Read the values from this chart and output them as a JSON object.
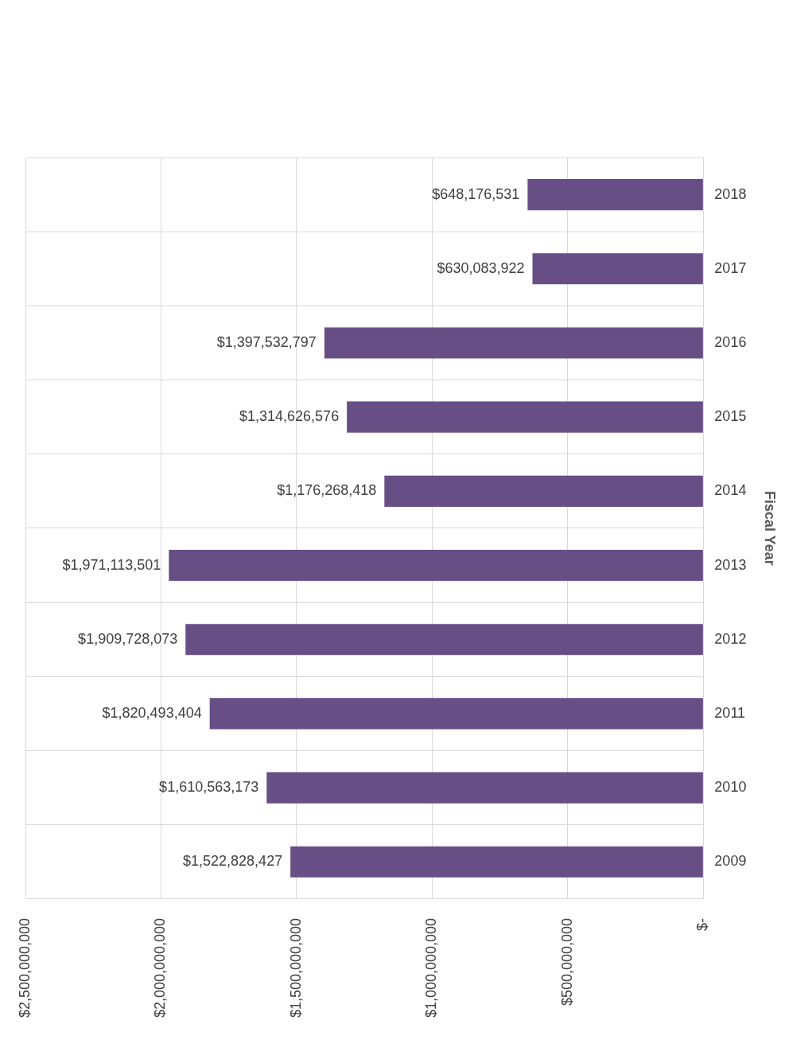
{
  "chart_data": {
    "type": "bar",
    "orientation": "horizontal",
    "ylabel": "Fiscal Year",
    "categories": [
      "2018",
      "2017",
      "2016",
      "2015",
      "2014",
      "2013",
      "2012",
      "2011",
      "2010",
      "2009"
    ],
    "values": [
      648176531,
      630083922,
      1397532797,
      1314626576,
      1176268418,
      1971113501,
      1909728073,
      1820493404,
      1610563173,
      1522828427
    ],
    "value_labels": [
      "$648,176,531",
      "$630,083,922",
      "$1,397,532,797",
      "$1,314,626,576",
      "$1,176,268,418",
      "$1,971,113,501",
      "$1,909,728,073",
      "$1,820,493,404",
      "$1,610,563,173",
      "$1,522,828,427"
    ],
    "color": "#674f86",
    "xlim": [
      2500000000,
      0
    ],
    "xticks": [
      {
        "value": 2500000000,
        "label": "$2,500,000,000"
      },
      {
        "value": 2000000000,
        "label": "$2,000,000,000"
      },
      {
        "value": 1500000000,
        "label": "$1,500,000,000"
      },
      {
        "value": 1000000000,
        "label": "$1,000,000,000"
      },
      {
        "value": 500000000,
        "label": "$500,000,000"
      },
      {
        "value": 0,
        "label": "$-"
      }
    ],
    "grid": true
  }
}
